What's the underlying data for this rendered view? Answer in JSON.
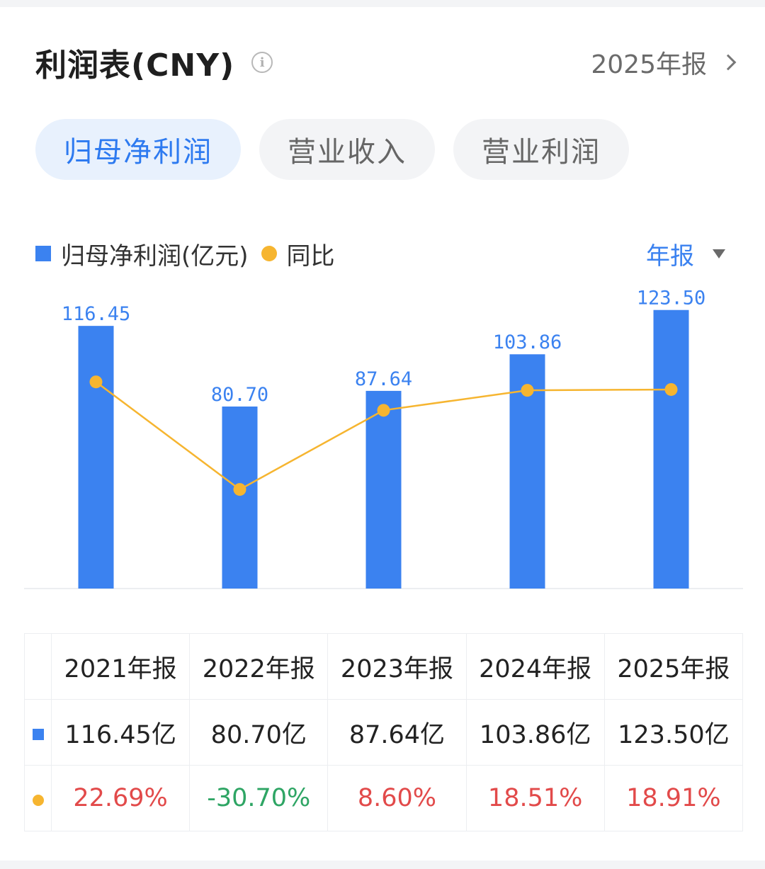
{
  "header": {
    "title": "利润表(CNY)",
    "info_icon": "info-icon",
    "period": "2025年报"
  },
  "tabs": [
    {
      "label": "归母净利润",
      "active": true
    },
    {
      "label": "营业收入",
      "active": false
    },
    {
      "label": "营业利润",
      "active": false
    }
  ],
  "legend": {
    "series1": "归母净利润(亿元)",
    "series2": "同比",
    "period_select": "年报"
  },
  "colors": {
    "bar": "#3b82f0",
    "line": "#f6b530",
    "positive": "#e24a4a",
    "negative": "#2ea564",
    "active_tab": "#2d7af0"
  },
  "chart_data": {
    "type": "bar",
    "categories": [
      "2021年报",
      "2022年报",
      "2023年报",
      "2024年报",
      "2025年报"
    ],
    "series": [
      {
        "name": "归母净利润(亿元)",
        "type": "bar",
        "values": [
          116.45,
          80.7,
          87.64,
          103.86,
          123.5
        ],
        "labels": [
          "116.45",
          "80.70",
          "87.64",
          "103.86",
          "123.50"
        ]
      },
      {
        "name": "同比",
        "type": "line",
        "values": [
          22.69,
          -30.7,
          8.6,
          18.51,
          18.91
        ]
      }
    ],
    "ylim": [
      0,
      130
    ],
    "y2lim": [
      -50,
      40
    ],
    "legend": "top-left",
    "grid": false
  },
  "table": {
    "headers": [
      "2021年报",
      "2022年报",
      "2023年报",
      "2024年报",
      "2025年报"
    ],
    "values": [
      "116.45亿",
      "80.70亿",
      "87.64亿",
      "103.86亿",
      "123.50亿"
    ],
    "yoy": [
      "22.69%",
      "-30.70%",
      "8.60%",
      "18.51%",
      "18.91%"
    ]
  }
}
